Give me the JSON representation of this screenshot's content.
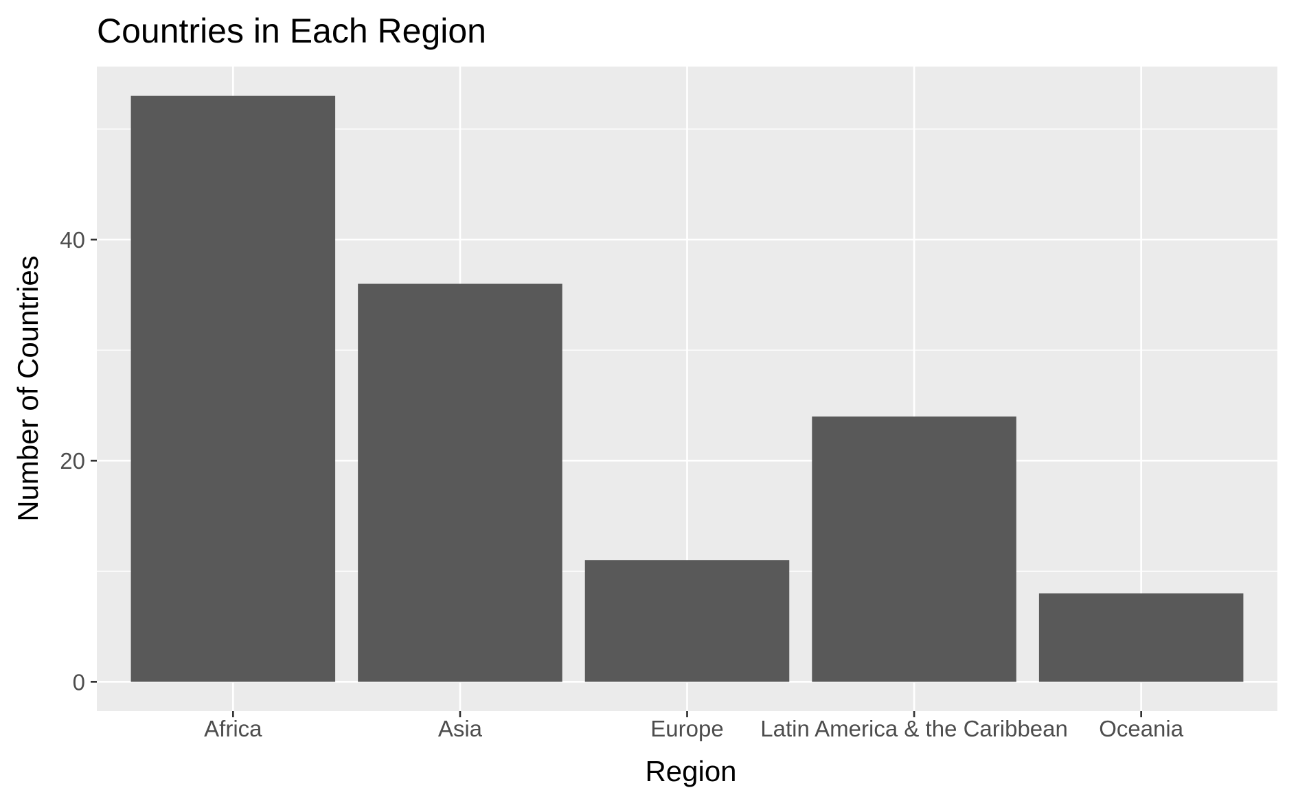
{
  "chart_data": {
    "type": "bar",
    "title": "Countries in Each Region",
    "xlabel": "Region",
    "ylabel": "Number of Countries",
    "categories": [
      "Africa",
      "Asia",
      "Europe",
      "Latin America & the Caribbean",
      "Oceania"
    ],
    "values": [
      53,
      36,
      11,
      24,
      8
    ],
    "ylim": [
      -2.65,
      55.65
    ],
    "yticks": [
      0,
      20,
      40
    ],
    "ytick_labels": [
      "0",
      "20",
      "40"
    ],
    "grid": true,
    "legend": "none",
    "colors": {
      "bar": "#595959",
      "panel": "#EBEBEB",
      "grid": "#FFFFFF",
      "tick_label": "#4D4D4D",
      "tick_mark": "#333333",
      "text": "#000000"
    }
  }
}
